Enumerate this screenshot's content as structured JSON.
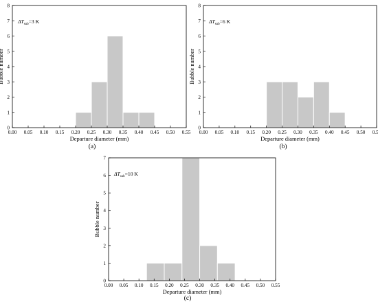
{
  "chart_data": [
    {
      "type": "bar",
      "panel_label": "(a)",
      "annotation": {
        "prefix": "ΔT",
        "sub": "sub",
        "suffix": "=3 K"
      },
      "xlabel": "Departure diameter (mm)",
      "ylabel": "Bubble number",
      "xlim": [
        0,
        0.55
      ],
      "ylim": [
        0,
        8
      ],
      "xticks": [
        "0.00",
        "0.05",
        "0.10",
        "0.15",
        "0.20",
        "0.25",
        "0.30",
        "0.35",
        "0.40",
        "0.45",
        "0.50",
        "0.55"
      ],
      "yticks": [
        "0",
        "1",
        "2",
        "3",
        "4",
        "5",
        "6",
        "7",
        "8"
      ],
      "bins": [
        {
          "start": 0.2,
          "end": 0.25,
          "value": 1
        },
        {
          "start": 0.25,
          "end": 0.3,
          "value": 3
        },
        {
          "start": 0.3,
          "end": 0.35,
          "value": 6
        },
        {
          "start": 0.35,
          "end": 0.4,
          "value": 1
        },
        {
          "start": 0.4,
          "end": 0.45,
          "value": 1
        }
      ]
    },
    {
      "type": "bar",
      "panel_label": "(b)",
      "annotation": {
        "prefix": "ΔT",
        "sub": "sub",
        "suffix": "=6 K"
      },
      "xlabel": "Departure diameter (mm)",
      "ylabel": "Bubble number",
      "xlim": [
        0,
        0.55
      ],
      "ylim": [
        0,
        8
      ],
      "xticks": [
        "0.00",
        "0.05",
        "0.10",
        "0.15",
        "0.20",
        "0.25",
        "0.30",
        "0.35",
        "0.40",
        "0.45",
        "0.50",
        "0.55"
      ],
      "yticks": [
        "0",
        "1",
        "2",
        "3",
        "4",
        "5",
        "6",
        "7",
        "8"
      ],
      "bins": [
        {
          "start": 0.2,
          "end": 0.25,
          "value": 3
        },
        {
          "start": 0.25,
          "end": 0.3,
          "value": 3
        },
        {
          "start": 0.3,
          "end": 0.35,
          "value": 2
        },
        {
          "start": 0.35,
          "end": 0.4,
          "value": 3
        },
        {
          "start": 0.4,
          "end": 0.45,
          "value": 1
        }
      ]
    },
    {
      "type": "bar",
      "panel_label": "(c)",
      "annotation": {
        "prefix": "ΔT",
        "sub": "sub",
        "suffix": "=10 K"
      },
      "xlabel": "Departure diameter (mm)",
      "ylabel": "Bubble number",
      "xlim": [
        0,
        0.55
      ],
      "ylim": [
        0,
        7
      ],
      "xticks": [
        "0.00",
        "0.05",
        "0.10",
        "0.15",
        "0.20",
        "0.25",
        "0.30",
        "0.35",
        "0.40",
        "0.45",
        "0.50",
        "0.55"
      ],
      "yticks": [
        "0",
        "1",
        "2",
        "3",
        "4",
        "5",
        "6",
        "7"
      ],
      "bins": [
        {
          "start": 0.125,
          "end": 0.1833,
          "value": 1
        },
        {
          "start": 0.1833,
          "end": 0.2417,
          "value": 1
        },
        {
          "start": 0.2417,
          "end": 0.3,
          "value": 7
        },
        {
          "start": 0.3,
          "end": 0.3583,
          "value": 2
        },
        {
          "start": 0.3583,
          "end": 0.4167,
          "value": 1
        }
      ]
    }
  ],
  "colors": {
    "bar_fill": "#c8c8c8",
    "bar_edge": "#ffffff",
    "axis": "#000000"
  }
}
